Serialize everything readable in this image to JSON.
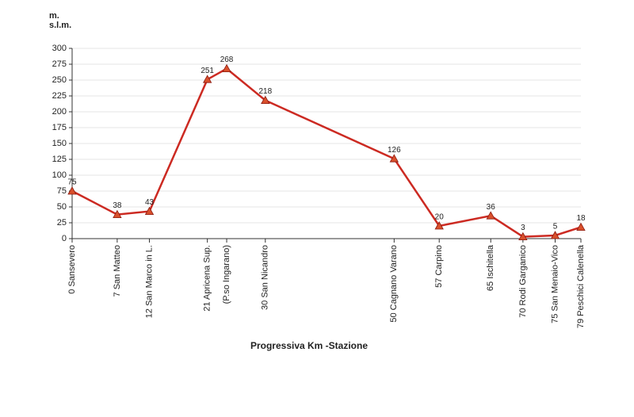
{
  "chart_data": {
    "type": "line",
    "y_label": [
      "m.",
      "s.l.m."
    ],
    "x_label": "Progressiva Km -Stazione",
    "x": [
      0,
      7,
      12,
      21,
      24,
      30,
      50,
      57,
      65,
      70,
      75,
      79
    ],
    "categories": [
      "0 Sansevero",
      "7 San Matteo",
      "12 San Marco in L.",
      "21 Apricena Sup.",
      "(P.so Ingarano)",
      "30 San Nicandro",
      "50 Cagnano Varano",
      "57 Carpino",
      "65 Ischitella",
      "70 Rodi Garganico",
      "75 San Menaio-Vico",
      "79 Peschici Calenella"
    ],
    "series": [
      {
        "color": "#cc2a22",
        "marker_color": "#d9502c",
        "values": [
          75,
          38,
          43,
          251,
          268,
          218,
          126,
          20,
          36,
          3,
          5,
          18
        ]
      }
    ],
    "xlim": [
      0,
      79
    ],
    "ylim": [
      0,
      300
    ],
    "yticks": [
      0,
      25,
      50,
      75,
      100,
      125,
      150,
      175,
      200,
      225,
      250,
      275,
      300
    ],
    "grid": true
  }
}
